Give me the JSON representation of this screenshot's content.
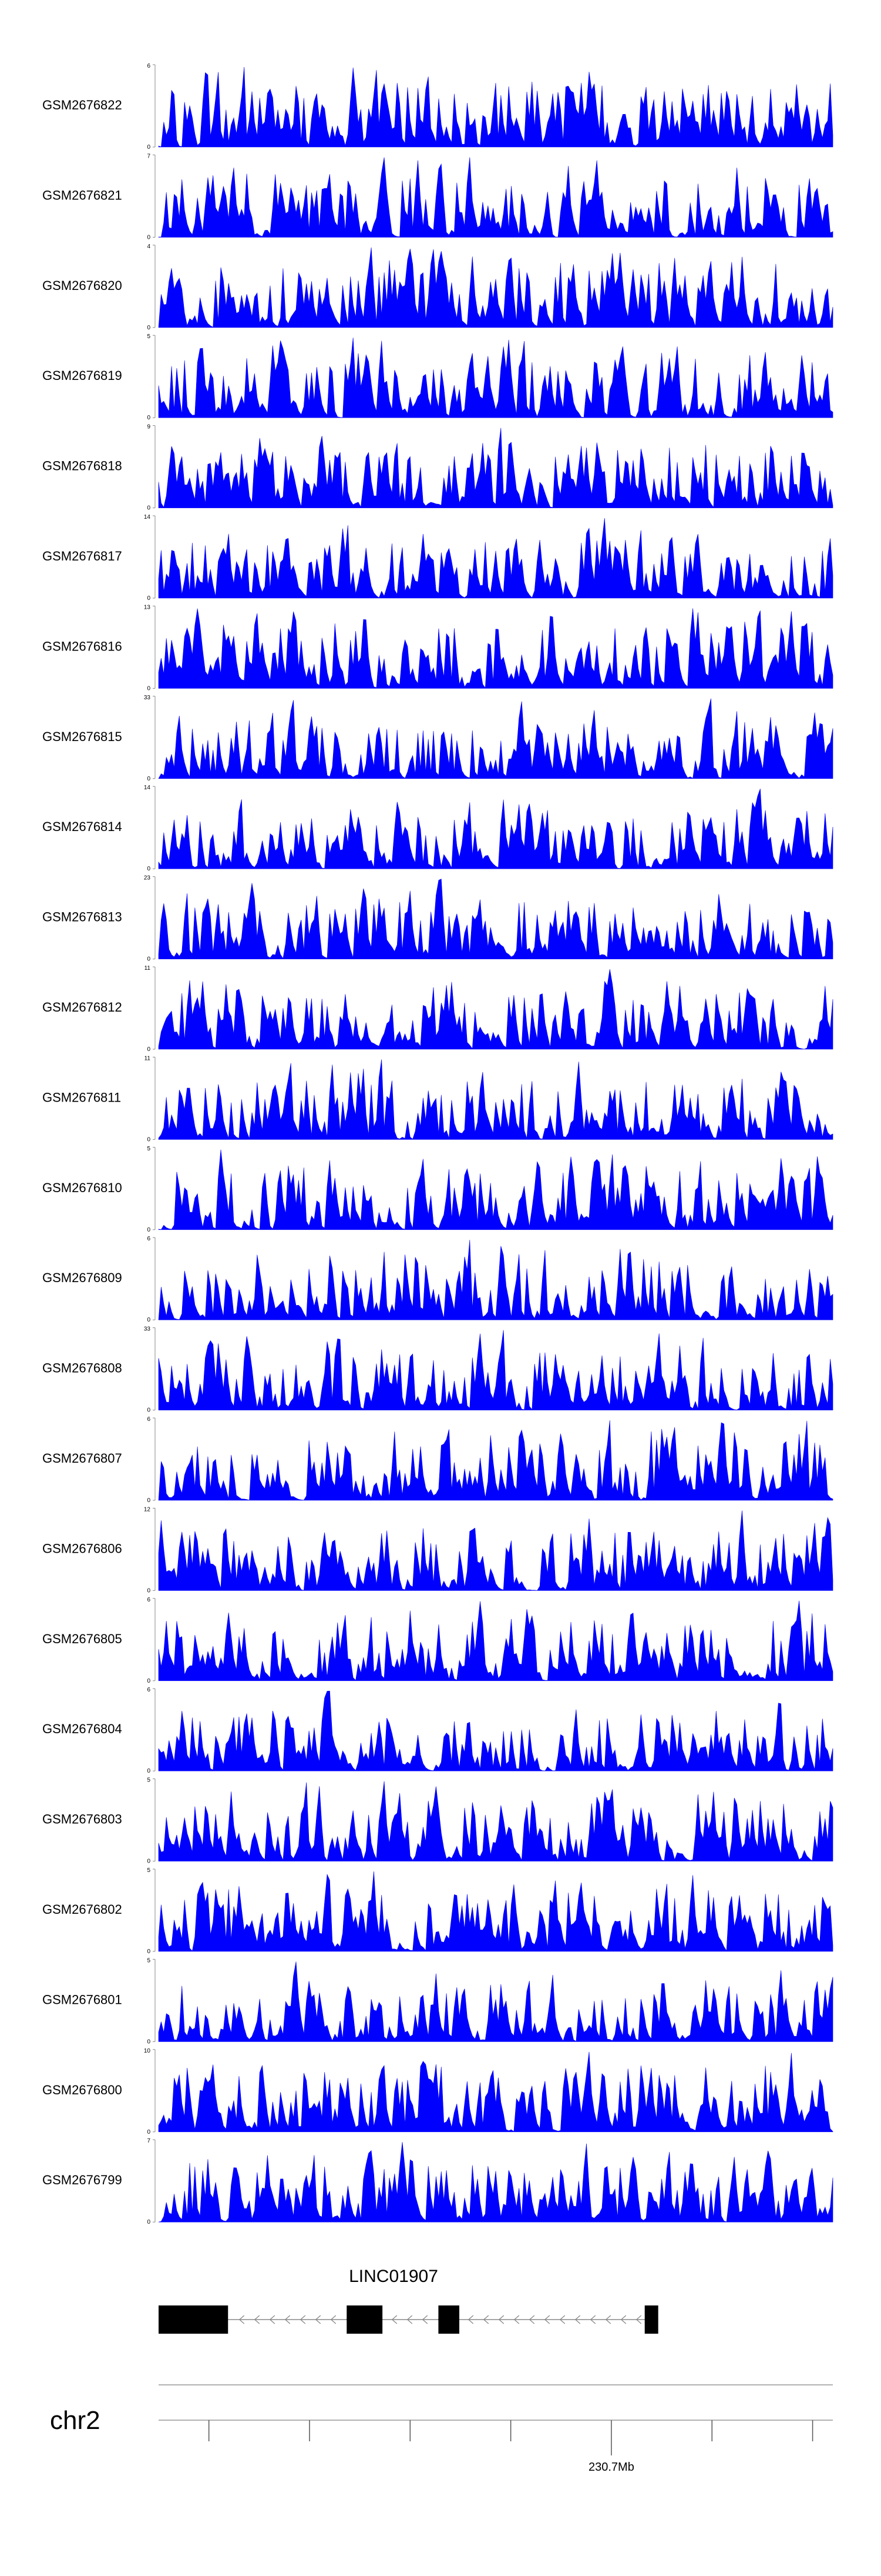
{
  "chart_data": {
    "type": "area",
    "title": "",
    "color": "#0000ff",
    "ylabel": "",
    "xlabel": "",
    "tracks": [
      {
        "name": "GSM2676822",
        "ymax": 6,
        "seed": 22
      },
      {
        "name": "GSM2676821",
        "ymax": 7,
        "seed": 21
      },
      {
        "name": "GSM2676820",
        "ymax": 4,
        "seed": 20
      },
      {
        "name": "GSM2676819",
        "ymax": 5,
        "seed": 19
      },
      {
        "name": "GSM2676818",
        "ymax": 9,
        "seed": 18
      },
      {
        "name": "GSM2676817",
        "ymax": 14,
        "seed": 17
      },
      {
        "name": "GSM2676816",
        "ymax": 13,
        "seed": 16
      },
      {
        "name": "GSM2676815",
        "ymax": 33,
        "seed": 15
      },
      {
        "name": "GSM2676814",
        "ymax": 14,
        "seed": 14
      },
      {
        "name": "GSM2676813",
        "ymax": 23,
        "seed": 13
      },
      {
        "name": "GSM2676812",
        "ymax": 11,
        "seed": 12
      },
      {
        "name": "GSM2676811",
        "ymax": 11,
        "seed": 11
      },
      {
        "name": "GSM2676810",
        "ymax": 5,
        "seed": 10
      },
      {
        "name": "GSM2676809",
        "ymax": 6,
        "seed": 9
      },
      {
        "name": "GSM2676808",
        "ymax": 33,
        "seed": 8
      },
      {
        "name": "GSM2676807",
        "ymax": 6,
        "seed": 7
      },
      {
        "name": "GSM2676806",
        "ymax": 12,
        "seed": 6
      },
      {
        "name": "GSM2676805",
        "ymax": 6,
        "seed": 5
      },
      {
        "name": "GSM2676804",
        "ymax": 6,
        "seed": 4
      },
      {
        "name": "GSM2676803",
        "ymax": 5,
        "seed": 3
      },
      {
        "name": "GSM2676802",
        "ymax": 5,
        "seed": 2
      },
      {
        "name": "GSM2676801",
        "ymax": 5,
        "seed": 1
      },
      {
        "name": "GSM2676800",
        "ymax": 10,
        "seed": 100
      },
      {
        "name": "GSM2676799",
        "ymax": 7,
        "seed": 99
      }
    ],
    "yzero_label": "0",
    "gene": {
      "name": "LINC01907",
      "strand": "-",
      "exons_fraction": [
        [
          0.0,
          0.103
        ],
        [
          0.279,
          0.332
        ],
        [
          0.415,
          0.446
        ],
        [
          0.721,
          0.741
        ]
      ]
    },
    "chromosome": "chr2",
    "axis_tick_label": "230.7Mb",
    "axis_tick_count": 7,
    "labeled_tick_index": 4
  }
}
